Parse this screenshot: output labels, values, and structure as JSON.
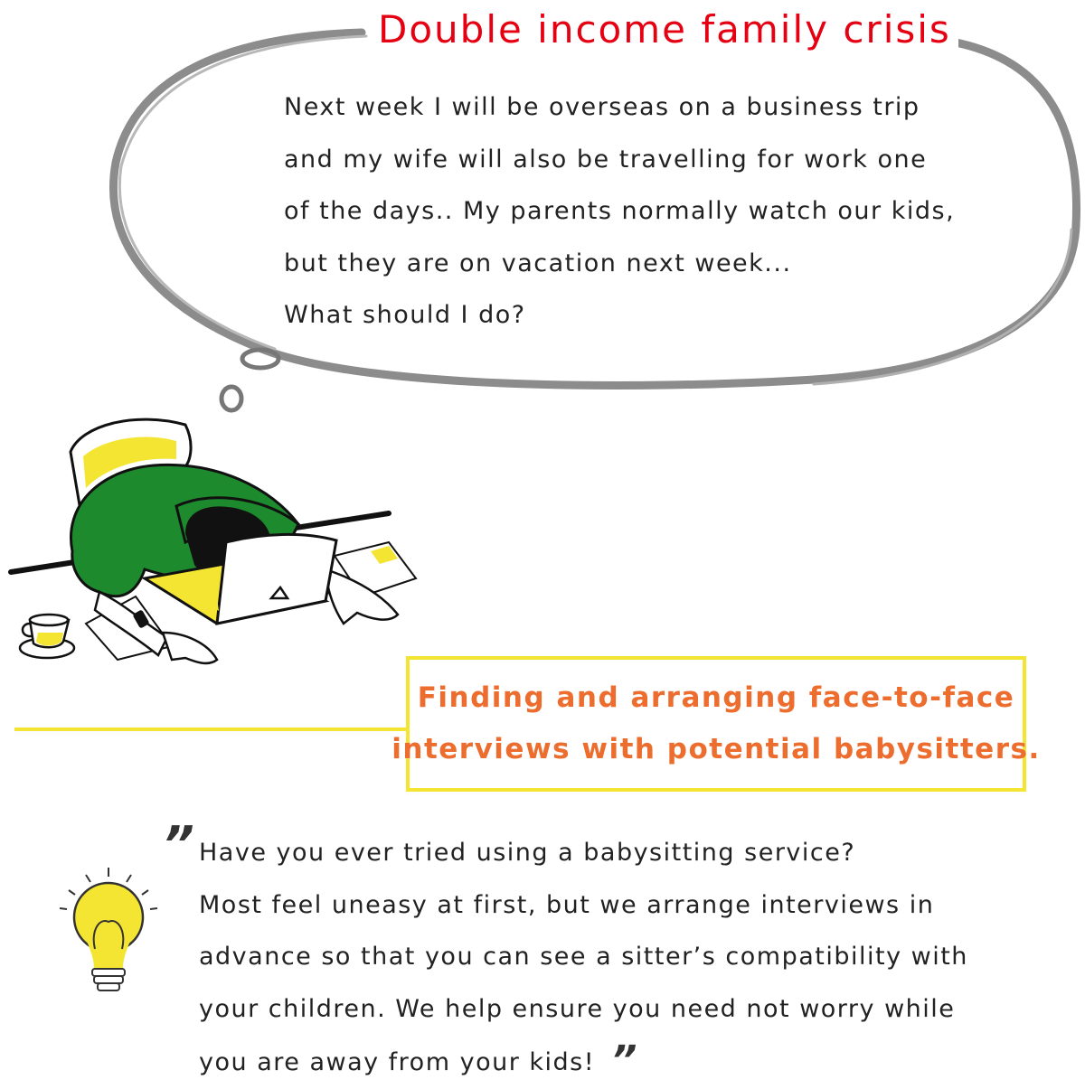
{
  "header": {
    "title": "Double income family crisis"
  },
  "thought_bubble": {
    "lines": [
      "Next week I will be overseas on a business trip",
      "and my wife will also be travelling for work one",
      "of the days.. My parents normally watch our kids,",
      "but they are on vacation next week...",
      "What should I do?"
    ]
  },
  "answer_box": {
    "lines": [
      "Finding and arranging face-to-face",
      "interviews with potential babysitters."
    ]
  },
  "quote": {
    "open_mark": "”",
    "close_mark": "”",
    "lines": [
      "Have you ever tried using a babysitting service?",
      "Most feel uneasy at first, but we arrange interviews in",
      "advance so that you can see a sitter’s compatibility with",
      "your children. We help ensure you need not worry while",
      "you are away from your kids!"
    ]
  },
  "colors": {
    "title": "#e50012",
    "answer_text": "#ec6d2e",
    "answer_border": "#f4e533",
    "shirt": "#1e8a2e",
    "accent_yellow": "#f4e533",
    "bubble_outline": "#8c8c8c"
  }
}
